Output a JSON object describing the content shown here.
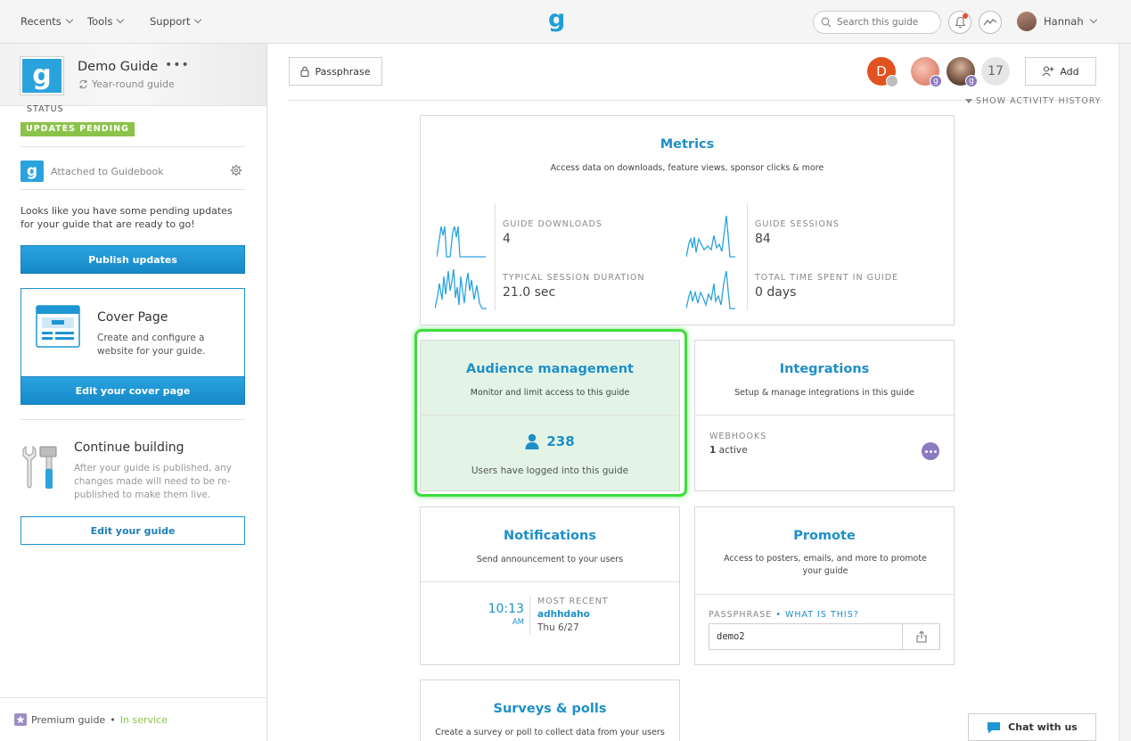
{
  "topbar": {
    "menus": [
      "Recents",
      "Tools",
      "Support"
    ],
    "logo": "g",
    "search_placeholder": "Search this guide",
    "user_name": "Hannah"
  },
  "sidebar": {
    "guide_logo": "g",
    "guide_name": "Demo Guide",
    "guide_more": "•••",
    "guide_type": "Year-round guide",
    "status_label": "STATUS",
    "status_badge": "UPDATES PENDING",
    "attached_logo": "g",
    "attached": "Attached to Guidebook",
    "pending_text": "Looks like you have some pending updates for your guide that are ready to go!",
    "publish_button": "Publish updates",
    "cover": {
      "title": "Cover Page",
      "desc": "Create and configure a website for your guide.",
      "button": "Edit your cover page"
    },
    "build": {
      "title": "Continue building",
      "desc": "After your guide is published, any changes made will need to be re-published to make them live.",
      "button": "Edit your guide"
    },
    "premium": {
      "label": "Premium guide",
      "sep": "•",
      "status": "In service"
    }
  },
  "main": {
    "passphrase_button": "Passphrase",
    "collaborators": {
      "initial": "D",
      "badge": "g",
      "count": "17"
    },
    "add_button": "Add",
    "activity_history": "SHOW ACTIVITY HISTORY",
    "metrics": {
      "title": "Metrics",
      "subtitle": "Access data on downloads, feature views, sponsor clicks & more",
      "items": [
        {
          "label": "GUIDE DOWNLOADS",
          "value": "4"
        },
        {
          "label": "GUIDE SESSIONS",
          "value": "84"
        },
        {
          "label": "TYPICAL SESSION DURATION",
          "value": "21.0 sec"
        },
        {
          "label": "TOTAL TIME SPENT IN GUIDE",
          "value": "0 days"
        }
      ]
    },
    "audience": {
      "title": "Audience management",
      "subtitle": "Monitor and limit access to this guide",
      "count": "238",
      "caption": "Users have logged into this guide"
    },
    "integrations": {
      "title": "Integrations",
      "subtitle": "Setup & manage integrations in this guide",
      "webhooks_label": "WEBHOOKS",
      "webhooks_count": "1",
      "webhooks_status": "active"
    },
    "notifications": {
      "title": "Notifications",
      "subtitle": "Send announcement to your users",
      "time": "10:13",
      "ampm": "AM",
      "recent_label": "MOST RECENT",
      "recent_name": "adhhdaho",
      "recent_date": "Thu 6/27"
    },
    "promote": {
      "title": "Promote",
      "subtitle": "Access to posters, emails, and more to promote your guide",
      "passphrase_label": "PASSPHRASE",
      "sep": "•",
      "what_is_this": "WHAT IS THIS?",
      "passphrase_value": "demo2"
    },
    "surveys": {
      "title": "Surveys & polls",
      "subtitle": "Create a survey or poll to collect data from your users"
    }
  },
  "chat_button": "Chat with us",
  "colors": {
    "accent": "#1e96d4",
    "status_green": "#8bc34a",
    "highlight": "#3ddc3d"
  }
}
